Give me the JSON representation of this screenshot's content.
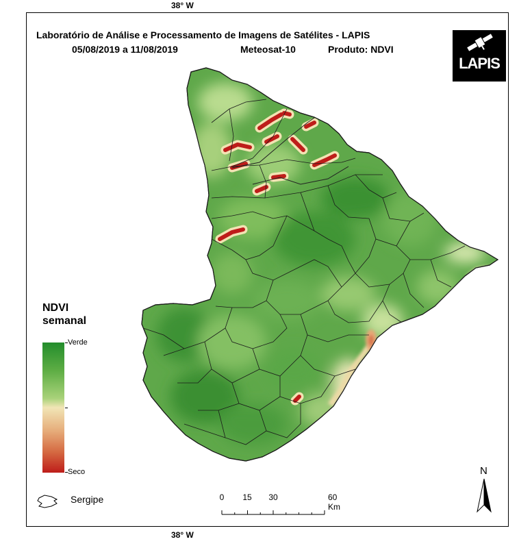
{
  "graticule": {
    "top": "38° W",
    "bottom": "38° W"
  },
  "title": {
    "line1": "Laboratório de Análise e Processamento de Imagens de Satélites - LAPIS",
    "date_range": "05/08/2019  a  11/08/2019",
    "satellite": "Meteosat-10",
    "product": "Produto: NDVI"
  },
  "logo": {
    "text": "LAPIS",
    "icon": "satellite-icon"
  },
  "legend": {
    "title_line1": "NDVI",
    "title_line2": "semanal",
    "top_label": "Verde",
    "bottom_label": "Seco",
    "colors": {
      "verde": "#238d2c",
      "mid": "#f1e5b6",
      "seco": "#be1d1a"
    }
  },
  "inset_legend": {
    "label": "Sergipe",
    "icon": "sergipe-outline-icon"
  },
  "scale_bar": {
    "labels": [
      "0",
      "15",
      "30",
      "60 Km"
    ]
  },
  "north_arrow": {
    "label": "N"
  },
  "map": {
    "state_fill": "#5fa84a",
    "boundary_color": "#1a1a1a",
    "dry_color": "#be1d1a",
    "dry_edge_color": "#f2e3b3"
  }
}
